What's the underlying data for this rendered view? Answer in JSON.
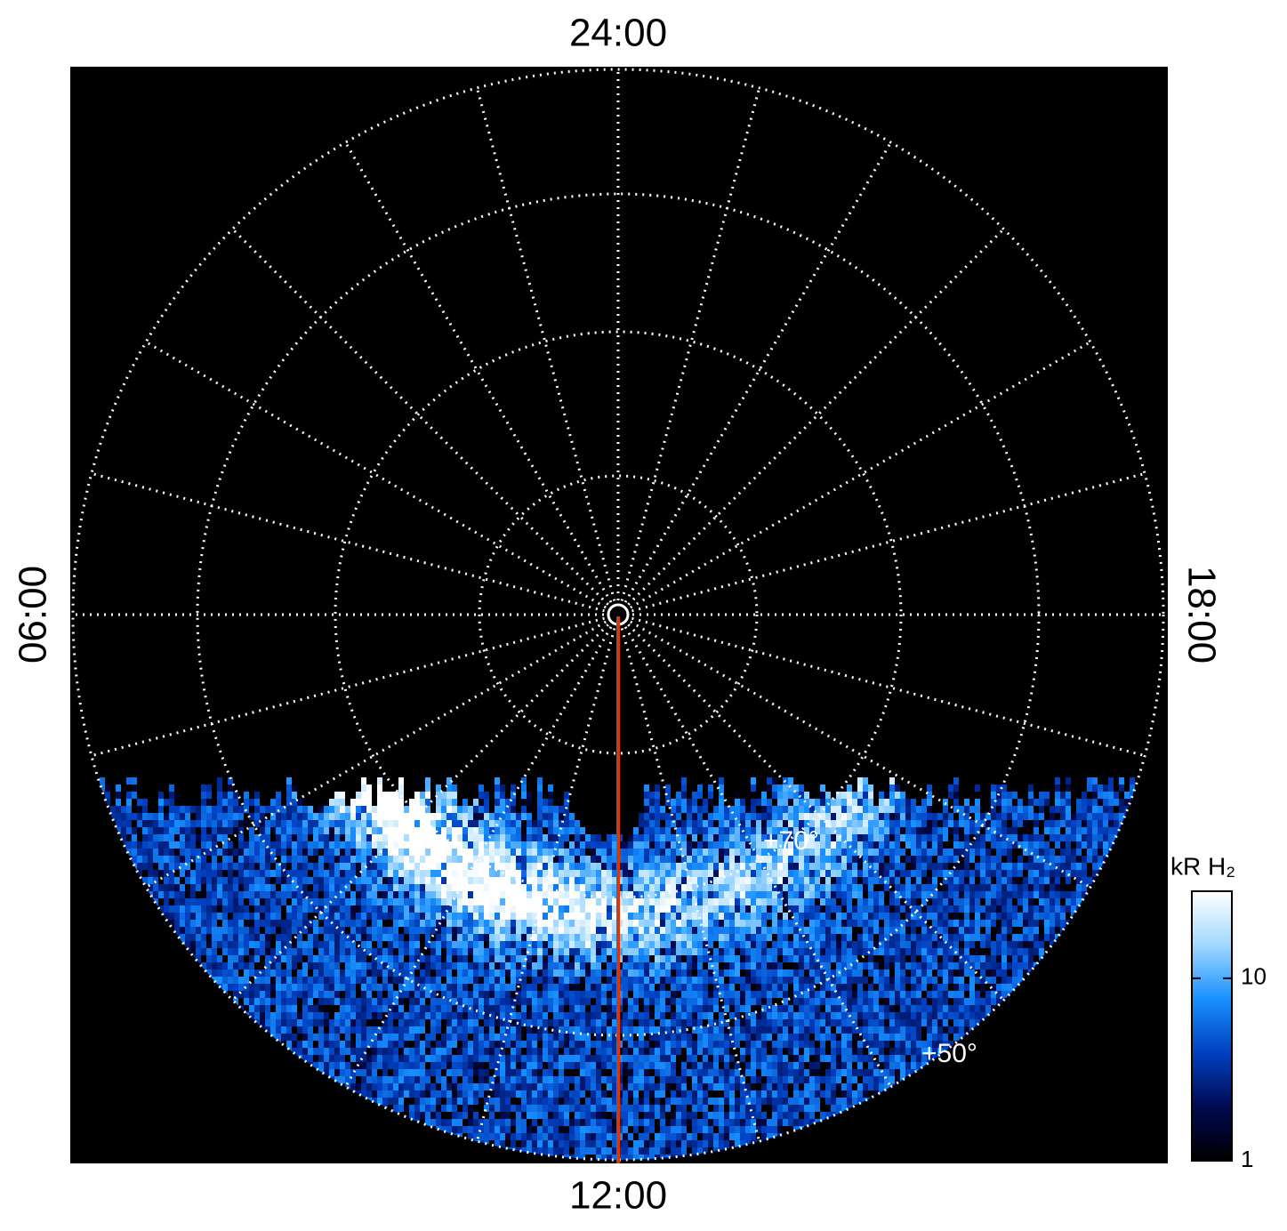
{
  "chart_data": {
    "type": "polar-image",
    "top_label": "24:00",
    "bottom_label": "12:00",
    "left_label": "06:00",
    "right_label": "18:00",
    "annotations": [
      "+70°",
      "+50°"
    ],
    "colorbar": {
      "label": "kR H₂",
      "log": true,
      "ylim": [
        1,
        30
      ],
      "yticks": [
        1,
        10
      ],
      "colors": [
        "#000000",
        "#000a50",
        "#0040c0",
        "#1890ff",
        "#a0d8ff",
        "#ffffff"
      ]
    }
  }
}
